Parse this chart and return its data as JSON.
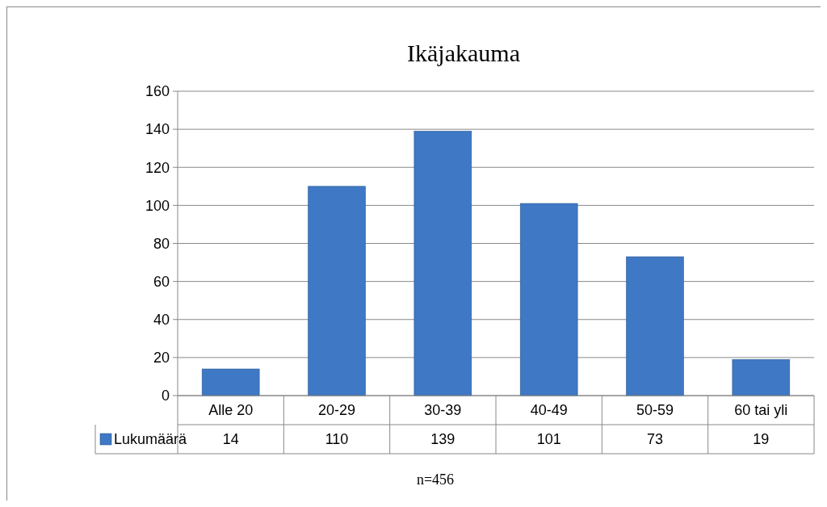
{
  "chart_data": {
    "type": "bar",
    "title": "Ikäjakauma",
    "categories": [
      "Alle 20",
      "20-29",
      "30-39",
      "40-49",
      "50-59",
      "60 tai yli"
    ],
    "series": [
      {
        "name": "Lukumäärä",
        "color": "#3f78c4",
        "values": [
          14,
          110,
          139,
          101,
          73,
          19
        ]
      }
    ],
    "ylim": [
      0,
      160
    ],
    "yticks": [
      0,
      20,
      40,
      60,
      80,
      100,
      120,
      140,
      160
    ],
    "grid": "y",
    "data_labels": true,
    "annotations": [
      "n=456"
    ]
  }
}
